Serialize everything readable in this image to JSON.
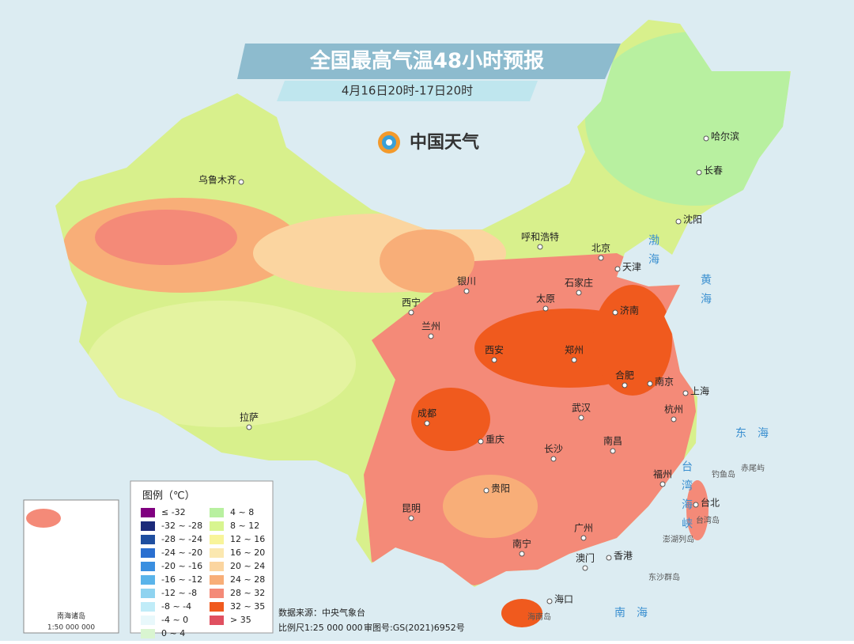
{
  "header": {
    "title": "全国最高气温48小时预报",
    "subtitle": "4月16日20时-17日20时",
    "logo": "中国天气"
  },
  "cities": [
    "乌鲁木齐",
    "哈尔滨",
    "长春",
    "沈阳",
    "呼和浩特",
    "北京",
    "天津",
    "石家庄",
    "太原",
    "济南",
    "银川",
    "西宁",
    "兰州",
    "西安",
    "郑州",
    "合肥",
    "南京",
    "上海",
    "武汉",
    "杭州",
    "成都",
    "重庆",
    "长沙",
    "南昌",
    "拉萨",
    "贵阳",
    "福州",
    "台北",
    "昆明",
    "广州",
    "南宁",
    "香港",
    "澳门",
    "海口"
  ],
  "seas": [
    "渤海",
    "黄海",
    "东海",
    "南海",
    "台湾海峡"
  ],
  "islands": [
    "钓鱼岛",
    "赤尾屿",
    "台湾岛",
    "澎湖列岛",
    "东沙群岛",
    "海南岛"
  ],
  "legend": {
    "title": "图例（℃）",
    "items": [
      {
        "label": "≤ -32",
        "color": "#800080"
      },
      {
        "label": "-32 ~ -28",
        "color": "#1b2a7a"
      },
      {
        "label": "-28 ~ -24",
        "color": "#1f4fa0"
      },
      {
        "label": "-24 ~ -20",
        "color": "#2a6fd0"
      },
      {
        "label": "-20 ~ -16",
        "color": "#3a8fe0"
      },
      {
        "label": "-16 ~ -12",
        "color": "#5ab4ea"
      },
      {
        "label": "-12 ~ -8",
        "color": "#8fd3f0"
      },
      {
        "label": "-8 ~ -4",
        "color": "#c0ecf8"
      },
      {
        "label": "-4 ~ 0",
        "color": "#e8f8fb"
      },
      {
        "label": "0 ~ 4",
        "color": "#d9f5d0"
      },
      {
        "label": "4 ~ 8",
        "color": "#b8f0a0"
      },
      {
        "label": "8 ~ 12",
        "color": "#d8f590"
      },
      {
        "label": "12 ~ 16",
        "color": "#f8f49a"
      },
      {
        "label": "16 ~ 20",
        "color": "#fbe8b0"
      },
      {
        "label": "20 ~ 24",
        "color": "#fbd5a0"
      },
      {
        "label": "24 ~ 28",
        "color": "#f8ae78"
      },
      {
        "label": "28 ~ 32",
        "color": "#f48a78"
      },
      {
        "label": "32 ~ 35",
        "color": "#f05a1e"
      },
      {
        "label": "> 35",
        "color": "#e05060"
      }
    ]
  },
  "footer": {
    "source": "数据来源：中央气象台",
    "scale": "比例尺1:25 000 000",
    "review": "审图号:GS(2021)6952号"
  },
  "inset": {
    "title": "南海诸岛",
    "scale": "1:50 000 000"
  }
}
